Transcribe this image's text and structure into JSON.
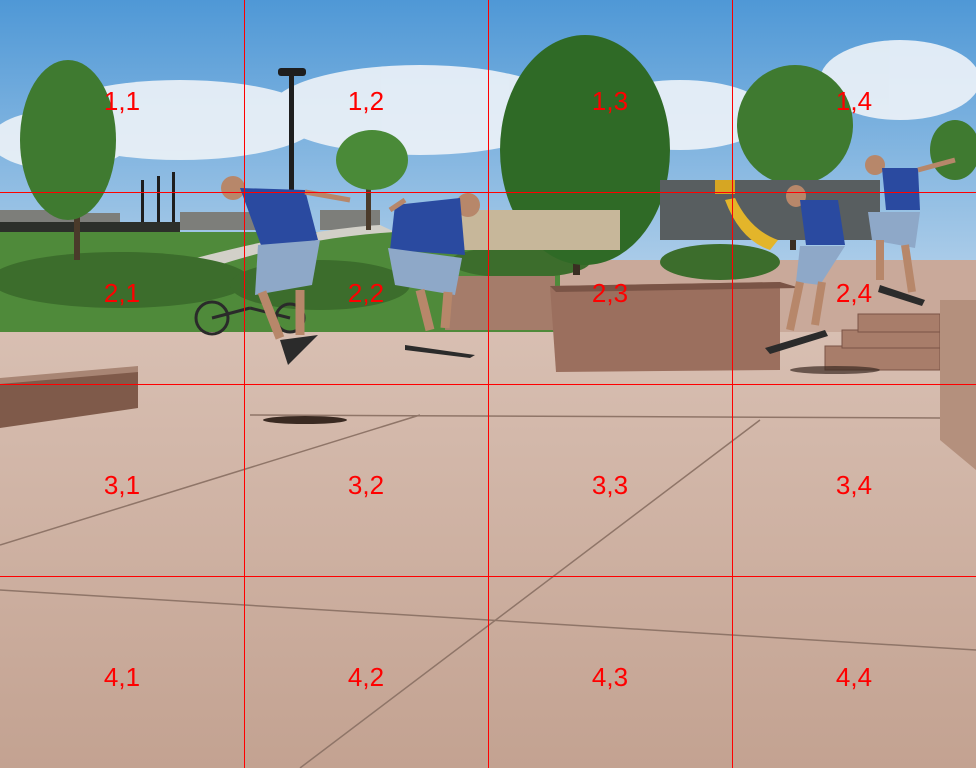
{
  "grid": {
    "rows": 4,
    "cols": 4,
    "line_color": "#ff0000",
    "labels": [
      [
        "1,1",
        "1,2",
        "1,3",
        "1,4"
      ],
      [
        "2,1",
        "2,2",
        "2,3",
        "2,4"
      ],
      [
        "3,1",
        "3,2",
        "3,3",
        "3,4"
      ],
      [
        "4,1",
        "4,2",
        "4,3",
        "4,4"
      ]
    ]
  },
  "scene": {
    "description_icons": [
      "skateboarder-sequence",
      "skate-ledge",
      "stairs",
      "trees",
      "street-lamp",
      "bicycle",
      "playground"
    ],
    "colors": {
      "sky": "#5aa0d8",
      "ground": "#c9a99a",
      "grass": "#4f8a3a",
      "shirt": "#2a4aa0"
    }
  }
}
